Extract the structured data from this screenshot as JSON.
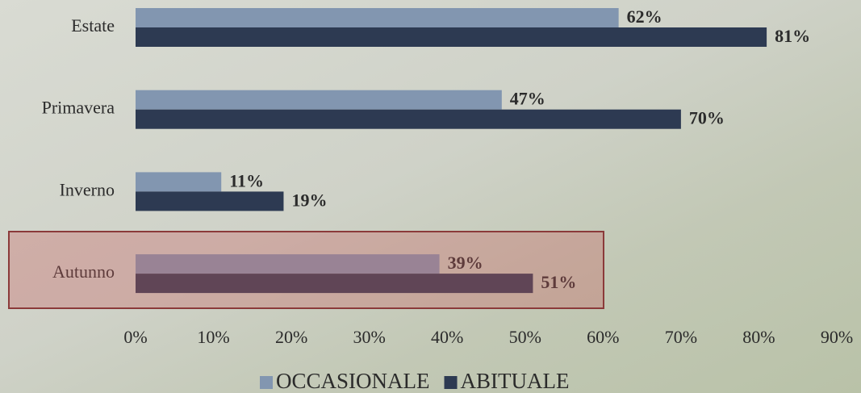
{
  "chart_data": {
    "type": "bar",
    "orientation": "horizontal",
    "categories": [
      "Estate",
      "Primavera",
      "Inverno",
      "Autunno"
    ],
    "series": [
      {
        "name": "OCCASIONALE",
        "color": "#8296b0",
        "values": [
          62,
          47,
          11,
          39
        ],
        "value_labels": [
          "62%",
          "47%",
          "11%",
          "39%"
        ]
      },
      {
        "name": "ABITUALE",
        "color": "#2d3a52",
        "values": [
          81,
          70,
          19,
          51
        ],
        "value_labels": [
          "81%",
          "70%",
          "19%",
          "51%"
        ]
      }
    ],
    "xlim": [
      0,
      90
    ],
    "xticks": [
      {
        "value": 0,
        "label": "0%"
      },
      {
        "value": 10,
        "label": "10%"
      },
      {
        "value": 20,
        "label": "20%"
      },
      {
        "value": 30,
        "label": "30%"
      },
      {
        "value": 40,
        "label": "40%"
      },
      {
        "value": 50,
        "label": "50%"
      },
      {
        "value": 60,
        "label": "60%"
      },
      {
        "value": 70,
        "label": "70%"
      },
      {
        "value": 80,
        "label": "80%"
      },
      {
        "value": 90,
        "label": "90%"
      }
    ],
    "grid": false,
    "legend": "bottom"
  }
}
